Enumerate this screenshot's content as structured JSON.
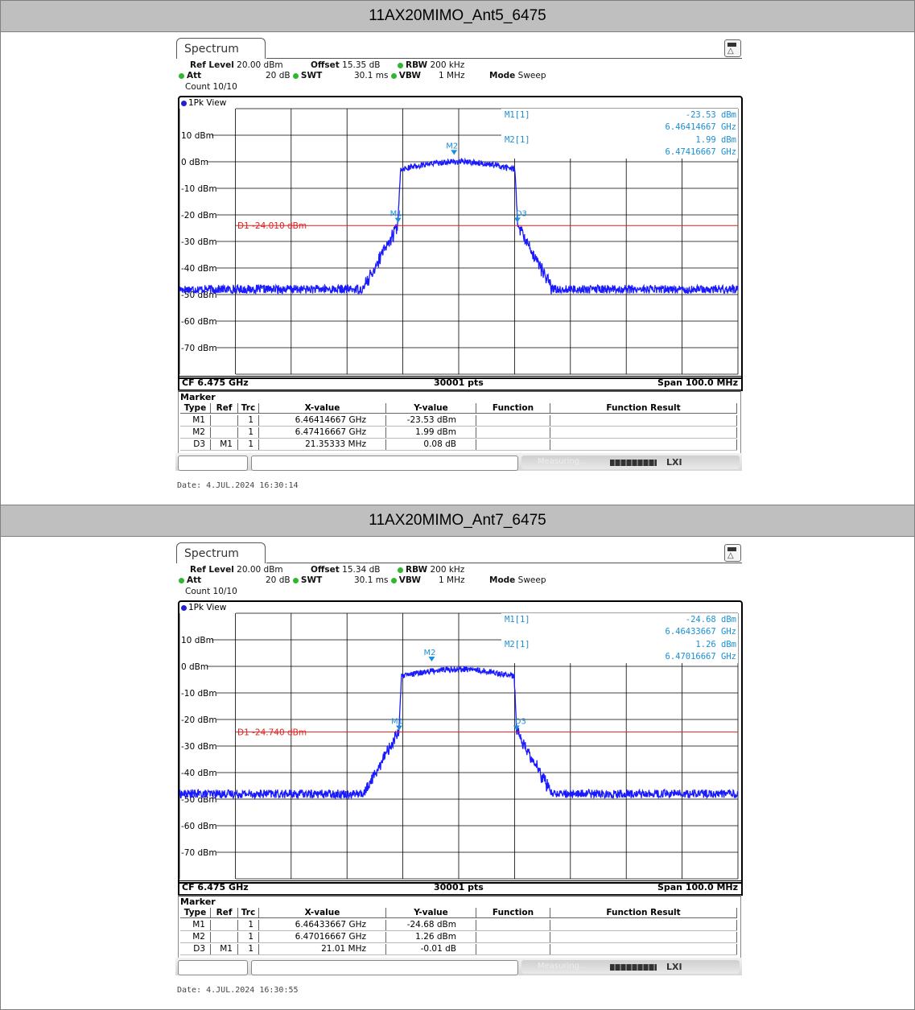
{
  "panels": [
    {
      "title": "11AX20MIMO_Ant5_6475",
      "tab": "Spectrum",
      "settings": {
        "ref_level_label": "Ref Level",
        "ref_level": "20.00 dBm",
        "offset_label": "Offset",
        "offset": "15.35 dB",
        "rbw_label": "RBW",
        "rbw": "200 kHz",
        "att_label": "Att",
        "att": "20 dB",
        "swt_label": "SWT",
        "swt": "30.1 ms",
        "vbw_label": "VBW",
        "vbw": "1 MHz",
        "mode_label": "Mode",
        "mode": "Sweep",
        "count": "Count 10/10"
      },
      "view_label": "1Pk View",
      "y_ticks": [
        "10 dBm",
        "0 dBm",
        "-10 dBm",
        "-20 dBm",
        "-30 dBm",
        "-40 dBm",
        "-50 dBm",
        "-60 dBm",
        "-70 dBm"
      ],
      "display_line_label": "D1 -24.010 dBm",
      "marker_readout": [
        {
          "label": "M1[1]",
          "value": "-23.53 dBm",
          "freq": "6.46414667 GHz"
        },
        {
          "label": "M2[1]",
          "value": "1.99 dBm",
          "freq": "6.47416667 GHz"
        }
      ],
      "footer": {
        "cf": "CF 6.475 GHz",
        "pts": "30001 pts",
        "span": "Span 100.0 MHz"
      },
      "marker_table": {
        "title": "Marker",
        "headers": [
          "Type",
          "Ref",
          "Trc",
          "X-value",
          "Y-value",
          "Function",
          "Function Result"
        ],
        "rows": [
          [
            "M1",
            "",
            "1",
            "6.46414667 GHz",
            "-23.53 dBm",
            "",
            ""
          ],
          [
            "M2",
            "",
            "1",
            "6.47416667 GHz",
            "1.99 dBm",
            "",
            ""
          ],
          [
            "D3",
            "M1",
            "1",
            "21.35333 MHz",
            "0.08 dB",
            "",
            ""
          ]
        ]
      },
      "status": {
        "measuring": "Measuring...",
        "lxi": "LXI"
      },
      "date": "Date: 4.JUL.2024  16:30:14",
      "chart_data": {
        "type": "line",
        "x_center_ghz": 6.475,
        "span_mhz": 100.0,
        "points": 30001,
        "ylim": [
          -80,
          20
        ],
        "display_line_dbm": -24.01,
        "noise_floor_dbm": -48,
        "channel_plateau_dbm": [
          -3,
          0
        ],
        "channel_edges_ghz": [
          6.46414667,
          6.4855
        ],
        "markers": [
          {
            "name": "M1",
            "x_ghz": 6.46414667,
            "y_dbm": -23.53
          },
          {
            "name": "M2",
            "x_ghz": 6.47416667,
            "y_dbm": 1.99
          },
          {
            "name": "D3",
            "x_ghz": 6.4855,
            "y_dbm": -23.45
          }
        ]
      },
      "colors": {
        "trace": "#1a1aff",
        "display_line": "#e02020",
        "marker_text": "#1a8fd6"
      }
    },
    {
      "title": "11AX20MIMO_Ant7_6475",
      "tab": "Spectrum",
      "settings": {
        "ref_level_label": "Ref Level",
        "ref_level": "20.00 dBm",
        "offset_label": "Offset",
        "offset": "15.34 dB",
        "rbw_label": "RBW",
        "rbw": "200 kHz",
        "att_label": "Att",
        "att": "20 dB",
        "swt_label": "SWT",
        "swt": "30.1 ms",
        "vbw_label": "VBW",
        "vbw": "1 MHz",
        "mode_label": "Mode",
        "mode": "Sweep",
        "count": "Count 10/10"
      },
      "view_label": "1Pk View",
      "y_ticks": [
        "10 dBm",
        "0 dBm",
        "-10 dBm",
        "-20 dBm",
        "-30 dBm",
        "-40 dBm",
        "-50 dBm",
        "-60 dBm",
        "-70 dBm"
      ],
      "display_line_label": "D1 -24.740 dBm",
      "marker_readout": [
        {
          "label": "M1[1]",
          "value": "-24.68 dBm",
          "freq": "6.46433667 GHz"
        },
        {
          "label": "M2[1]",
          "value": "1.26 dBm",
          "freq": "6.47016667 GHz"
        }
      ],
      "footer": {
        "cf": "CF 6.475 GHz",
        "pts": "30001 pts",
        "span": "Span 100.0 MHz"
      },
      "marker_table": {
        "title": "Marker",
        "headers": [
          "Type",
          "Ref",
          "Trc",
          "X-value",
          "Y-value",
          "Function",
          "Function Result"
        ],
        "rows": [
          [
            "M1",
            "",
            "1",
            "6.46433667 GHz",
            "-24.68 dBm",
            "",
            ""
          ],
          [
            "M2",
            "",
            "1",
            "6.47016667 GHz",
            "1.26 dBm",
            "",
            ""
          ],
          [
            "D3",
            "M1",
            "1",
            "21.01 MHz",
            "-0.01 dB",
            "",
            ""
          ]
        ]
      },
      "status": {
        "measuring": "Measuring...",
        "lxi": "LXI"
      },
      "date": "Date: 4.JUL.2024  16:30:55",
      "chart_data": {
        "type": "line",
        "x_center_ghz": 6.475,
        "span_mhz": 100.0,
        "points": 30001,
        "ylim": [
          -80,
          20
        ],
        "display_line_dbm": -24.74,
        "noise_floor_dbm": -48,
        "channel_plateau_dbm": [
          -4,
          -1
        ],
        "channel_edges_ghz": [
          6.46433667,
          6.48534667
        ],
        "markers": [
          {
            "name": "M1",
            "x_ghz": 6.46433667,
            "y_dbm": -24.68
          },
          {
            "name": "M2",
            "x_ghz": 6.47016667,
            "y_dbm": 1.26
          },
          {
            "name": "D3",
            "x_ghz": 6.48534667,
            "y_dbm": -24.69
          }
        ]
      },
      "colors": {
        "trace": "#1a1aff",
        "display_line": "#e02020",
        "marker_text": "#1a8fd6"
      }
    }
  ]
}
